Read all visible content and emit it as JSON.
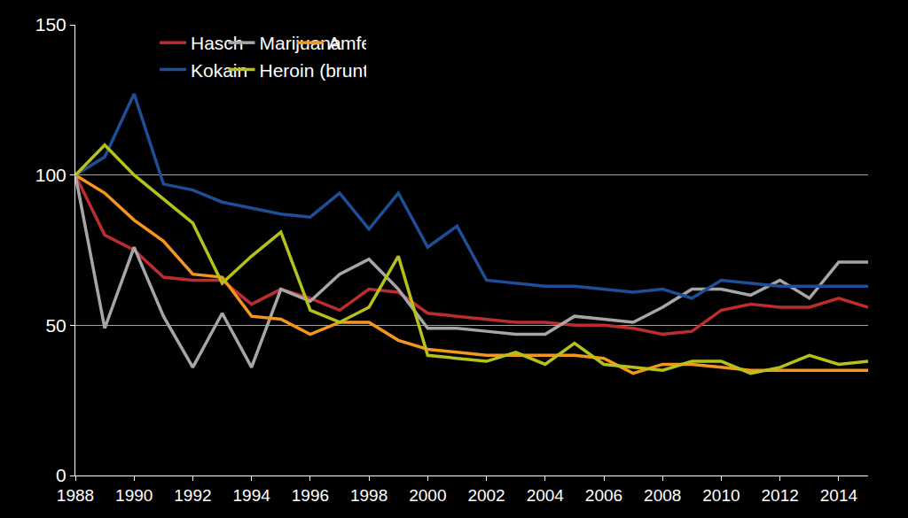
{
  "chart_data": {
    "type": "line",
    "x": [
      1988,
      1989,
      1990,
      1991,
      1992,
      1993,
      1994,
      1995,
      1996,
      1997,
      1998,
      1999,
      2000,
      2001,
      2002,
      2003,
      2004,
      2005,
      2006,
      2007,
      2008,
      2009,
      2010,
      2011,
      2012,
      2013,
      2014,
      2015
    ],
    "series": [
      {
        "name": "Hasch",
        "color": "#be2d2d",
        "values": [
          100,
          80,
          75,
          66,
          65,
          65,
          57,
          62,
          59,
          55,
          62,
          61,
          54,
          53,
          52,
          51,
          51,
          50,
          50,
          49,
          47,
          48,
          55,
          57,
          56,
          56,
          59,
          56
        ]
      },
      {
        "name": "Marijuana",
        "color": "#a6a6a6",
        "values": [
          100,
          49,
          76,
          53,
          36,
          54,
          36,
          62,
          58,
          67,
          72,
          62,
          49,
          49,
          48,
          47,
          47,
          53,
          52,
          51,
          56,
          62,
          62,
          60,
          65,
          59,
          71,
          71
        ]
      },
      {
        "name": "Amfetamin",
        "color": "#f5961e",
        "values": [
          100,
          94,
          85,
          78,
          67,
          66,
          53,
          52,
          47,
          51,
          51,
          45,
          42,
          41,
          40,
          40,
          40,
          40,
          39,
          34,
          37,
          37,
          36,
          35,
          35,
          35,
          35,
          35
        ]
      },
      {
        "name": "Kokain",
        "color": "#1f4e96",
        "values": [
          100,
          106,
          127,
          97,
          95,
          91,
          89,
          87,
          86,
          94,
          82,
          94,
          76,
          83,
          65,
          64,
          63,
          63,
          62,
          61,
          62,
          59,
          65,
          64,
          63,
          63,
          63,
          63
        ]
      },
      {
        "name": "Heroin (brunt)",
        "color": "#b5c21c",
        "values": [
          100,
          110,
          100,
          92,
          84,
          64,
          73,
          81,
          55,
          51,
          56,
          73,
          40,
          39,
          38,
          41,
          37,
          44,
          37,
          36,
          35,
          38,
          38,
          34,
          36,
          40,
          37,
          38
        ]
      }
    ],
    "xlim": [
      1988,
      2015
    ],
    "xticks": [
      1988,
      1990,
      1992,
      1994,
      1996,
      1998,
      2000,
      2002,
      2004,
      2006,
      2008,
      2010,
      2012,
      2014
    ],
    "ylim": [
      0,
      150
    ],
    "yticks": [
      0,
      50,
      100,
      150
    ],
    "grid": true,
    "legend": "top"
  }
}
